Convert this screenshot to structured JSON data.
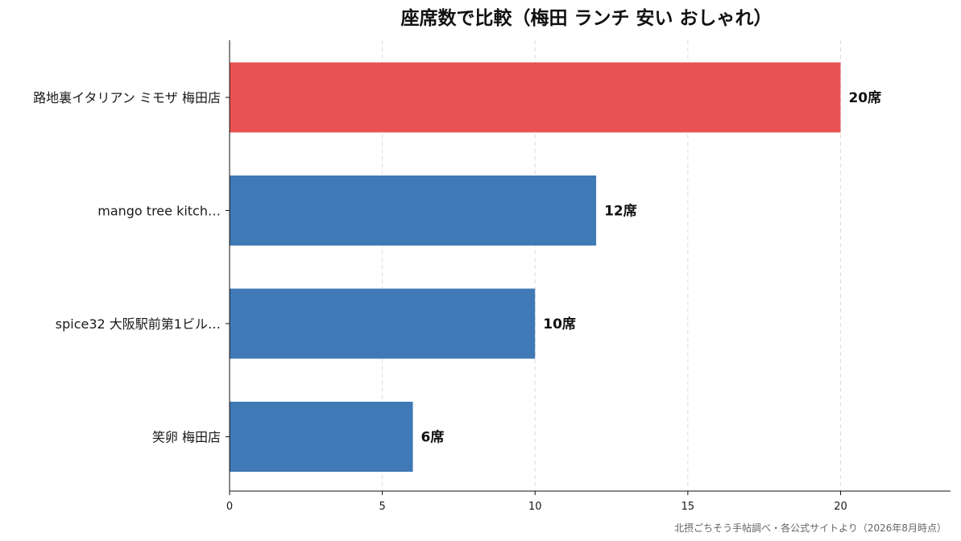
{
  "chart_data": {
    "type": "bar",
    "orientation": "horizontal",
    "title": "座席数で比較（梅田 ランチ 安い おしゃれ）",
    "categories": [
      "路地裏イタリアン ミモザ 梅田店",
      "mango tree kitch…",
      "spice32 大阪駅前第1ビル…",
      "笑卵 梅田店"
    ],
    "values": [
      20,
      12,
      10,
      6
    ],
    "value_labels": [
      "20席",
      "12席",
      "10席",
      "6席"
    ],
    "highlight_index": 0,
    "xlim": [
      0,
      23.6
    ],
    "xticks": [
      0,
      5,
      10,
      15,
      20
    ],
    "grid": "x-dashed",
    "xlabel": "",
    "ylabel": "",
    "colors": {
      "highlight": "#e85252",
      "default": "#3f79b6",
      "grid": "#dddddd",
      "axis": "#111111"
    },
    "source": "北摂ごちそう手帖調べ・各公式サイトより（2026年8月時点）"
  }
}
